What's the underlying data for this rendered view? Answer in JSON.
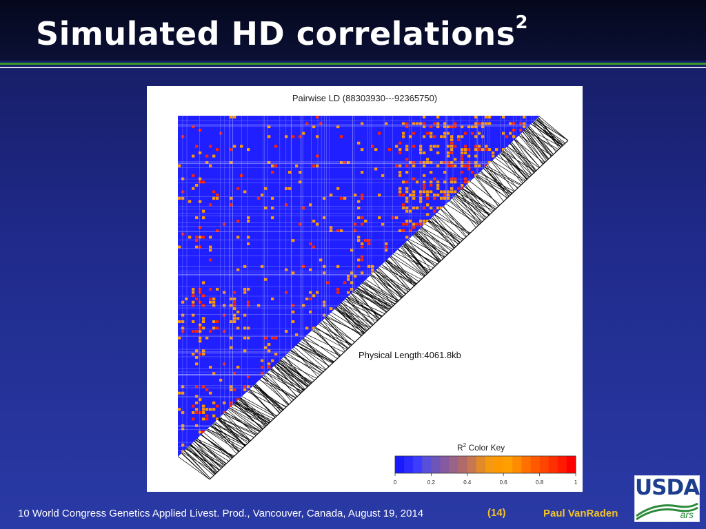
{
  "slide": {
    "title": "Simulated HD correlations",
    "title_superscript": "2",
    "footer": "10 World Congress Genetics Applied Livest. Prod., Vancouver, Canada, August 19, 2014",
    "slide_number": "(14)",
    "author": "Paul VanRaden",
    "logo_text": "USDA",
    "logo_subtext": "ars"
  },
  "chart_data": {
    "type": "heatmap",
    "title": "Pairwise LD (88303930---92365750)",
    "annotation": "Physical Length:4061.8kb",
    "color_key": {
      "title": "R",
      "title_superscript": "2",
      "title_suffix": " Color Key",
      "min": 0,
      "max": 1,
      "ticks": [
        "0",
        "0.2",
        "0.4",
        "0.6",
        "0.8",
        "1"
      ],
      "colors": [
        "#1a1aff",
        "#2b2bff",
        "#3d3dff",
        "#5a4fd8",
        "#6e55b8",
        "#865aa0",
        "#9a6488",
        "#b06a6a",
        "#c87850",
        "#e08a28",
        "#f59a10",
        "#ff9900",
        "#ffa000",
        "#ff8c00",
        "#ff7000",
        "#ff5a00",
        "#ff4500",
        "#ff3000",
        "#ff1a00",
        "#ff0000"
      ]
    },
    "colors": {
      "low": "#1f1fff",
      "medium": "#ff9900",
      "high": "#ff2200"
    }
  }
}
